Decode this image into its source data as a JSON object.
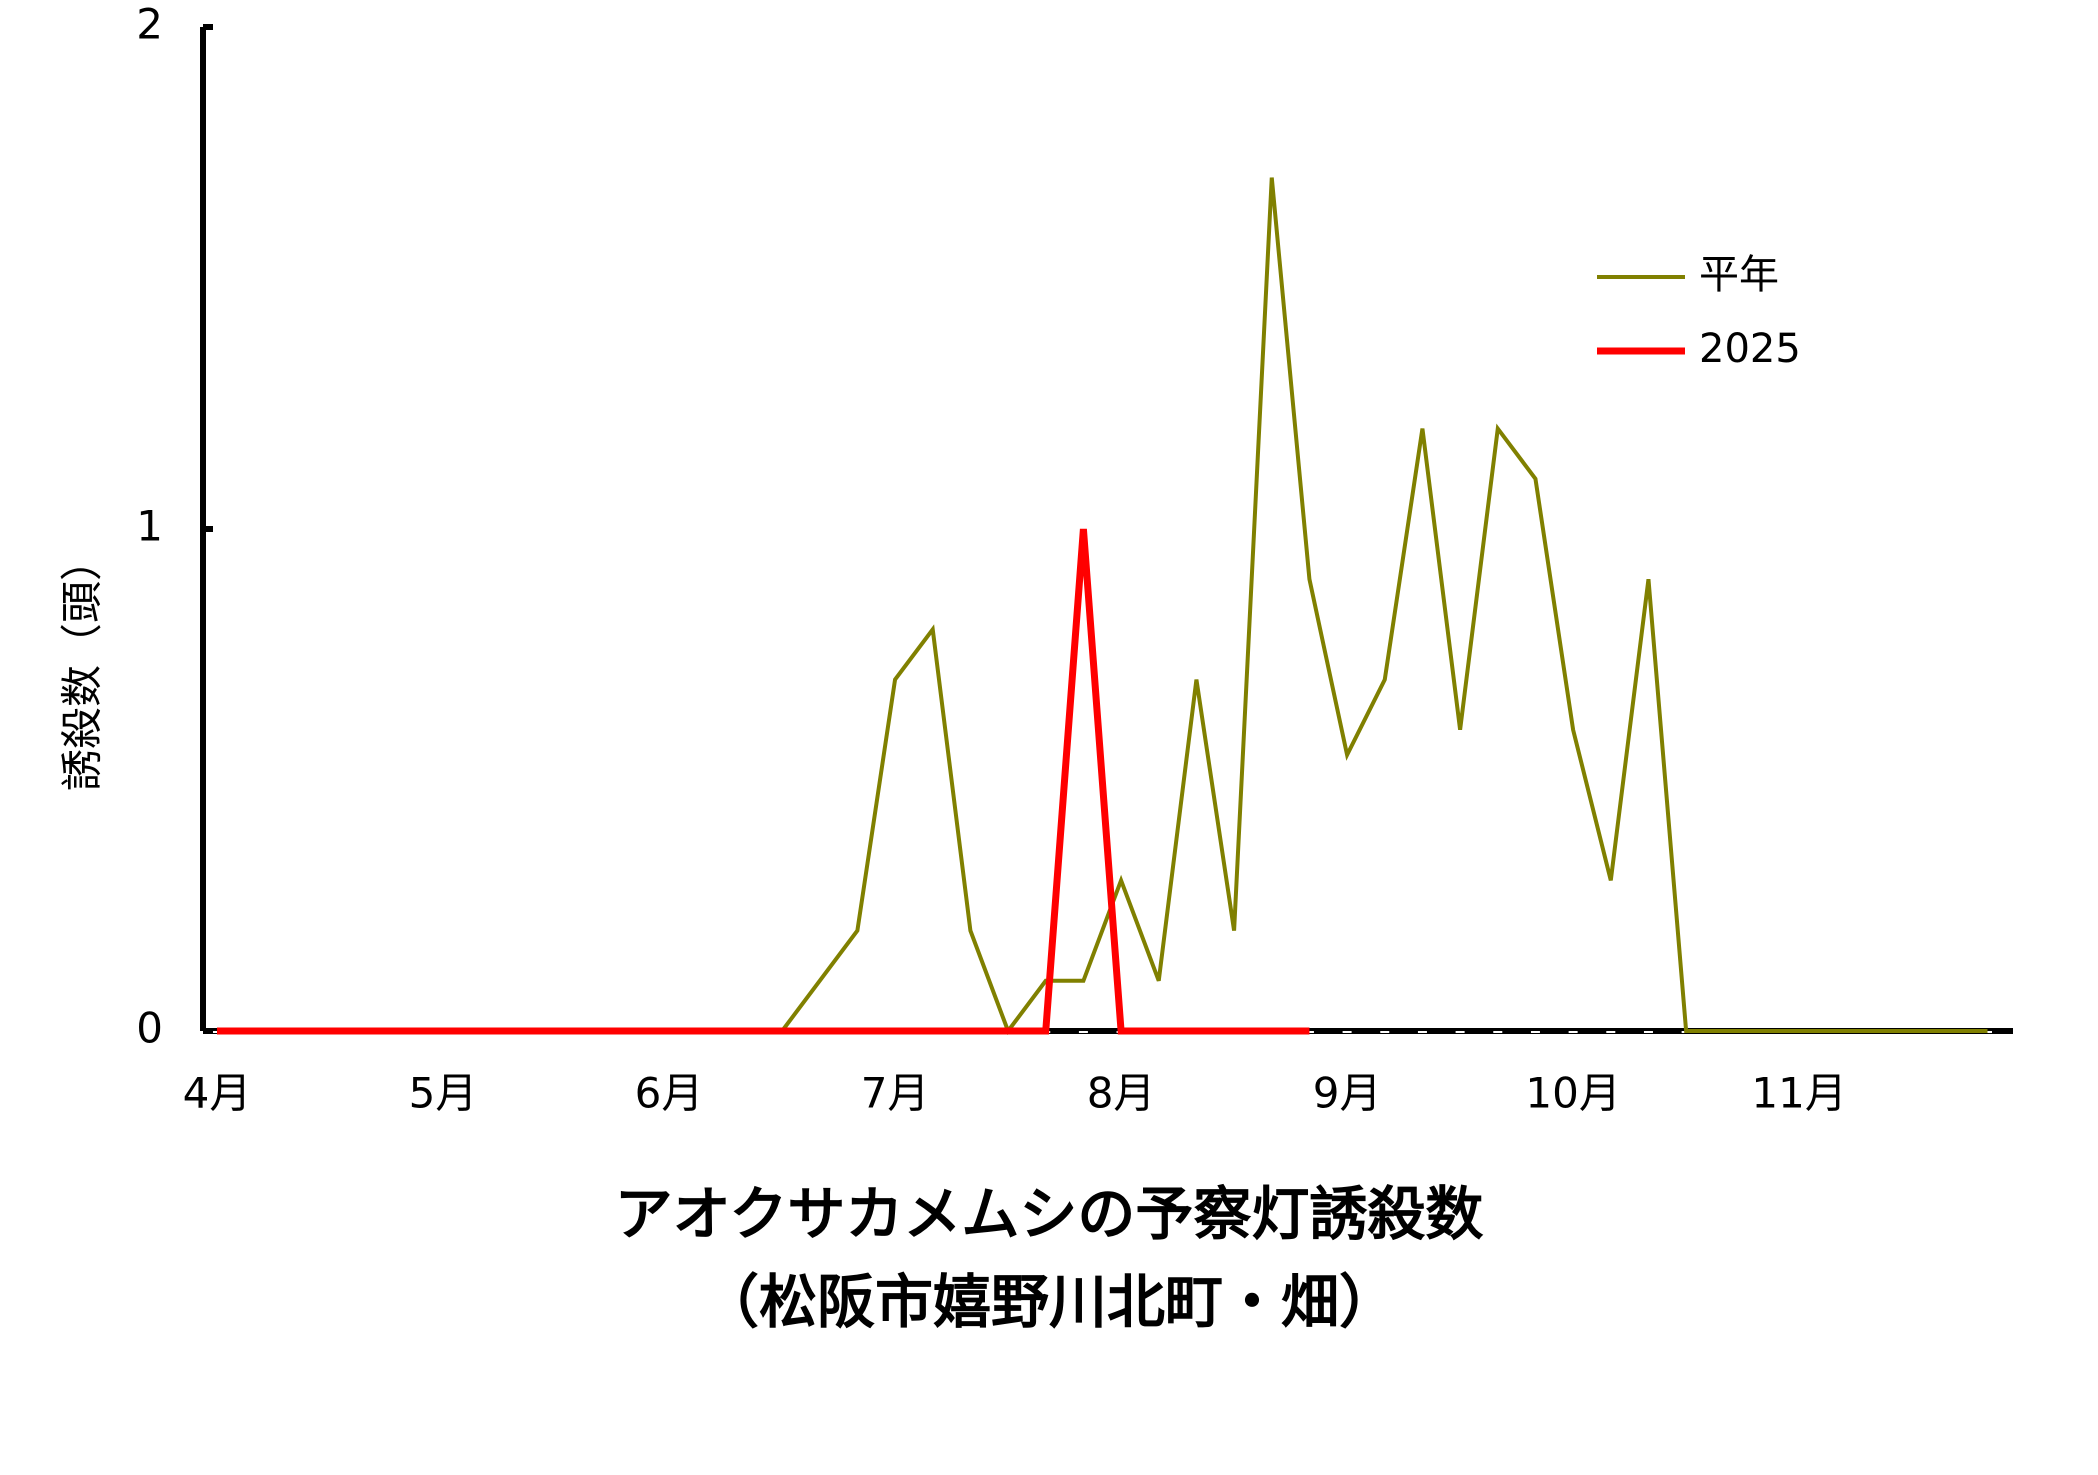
{
  "chart_data": {
    "type": "line",
    "title": "アオクサカメムシの予察灯誘殺数",
    "subtitle": "（松阪市嬉野川北町・畑）",
    "y_label": "誘殺数（頭）",
    "categories": [
      "4月",
      null,
      null,
      null,
      null,
      null,
      "5月",
      null,
      null,
      null,
      null,
      null,
      "6月",
      null,
      null,
      null,
      null,
      null,
      "7月",
      null,
      null,
      null,
      null,
      null,
      "8月",
      null,
      null,
      null,
      null,
      null,
      "9月",
      null,
      null,
      null,
      null,
      null,
      "10月",
      null,
      null,
      null,
      null,
      null,
      "11月",
      null,
      null,
      null,
      null,
      null
    ],
    "series": [
      {
        "name": "平年",
        "color": "#808000",
        "values": [
          0,
          0,
          0,
          0,
          0,
          0,
          0,
          0,
          0,
          0,
          0,
          0,
          0,
          0,
          0,
          0,
          0.1,
          0.2,
          0.7,
          0.8,
          0.2,
          0,
          0.1,
          0.1,
          0.3,
          0.1,
          0.7,
          0.2,
          1.7,
          0.9,
          0.55,
          0.7,
          1.2,
          0.6,
          1.2,
          1.1,
          0.6,
          0.3,
          0.9,
          0,
          0,
          0,
          0,
          0,
          0,
          0,
          0,
          0
        ]
      },
      {
        "name": "2025",
        "color": "#ff0000",
        "values": [
          0,
          0,
          0,
          0,
          0,
          0,
          0,
          0,
          0,
          0,
          0,
          0,
          0,
          0,
          0,
          0,
          0,
          0,
          0,
          0,
          0,
          0,
          0,
          1,
          0,
          0,
          0,
          0,
          0,
          0,
          null,
          null,
          null,
          null,
          null,
          null,
          null,
          null,
          null,
          null,
          null,
          null,
          null,
          null,
          null,
          null,
          null,
          null
        ]
      }
    ],
    "ylim": [
      0,
      2
    ],
    "yticks": [
      0,
      1,
      2
    ]
  }
}
